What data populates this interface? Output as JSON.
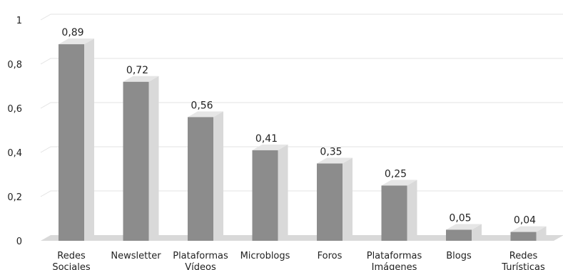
{
  "chart_data": {
    "type": "bar",
    "title": "",
    "xlabel": "",
    "ylabel": "",
    "ylim": [
      0,
      1
    ],
    "yticks": [
      {
        "value": 0,
        "label": "0"
      },
      {
        "value": 0.2,
        "label": "0,2"
      },
      {
        "value": 0.4,
        "label": "0,4"
      },
      {
        "value": 0.6,
        "label": "0,6"
      },
      {
        "value": 0.8,
        "label": "0,8"
      },
      {
        "value": 1,
        "label": "1"
      }
    ],
    "grid": true,
    "legend": "none",
    "style": "3d-column",
    "colors": {
      "bar_front": "#8c8c8c",
      "bar_side": "#d9d9d9",
      "bar_top": "#e6e6e6",
      "floor": "#d9d9d9",
      "gridline": "#e3e3e3",
      "text": "#222222"
    },
    "categories": [
      [
        "Redes",
        "Sociales"
      ],
      [
        "Newsletter"
      ],
      [
        "Plataformas",
        "Vídeos"
      ],
      [
        "Microblogs"
      ],
      [
        "Foros"
      ],
      [
        "Plataformas",
        "Imágenes"
      ],
      [
        "Blogs"
      ],
      [
        "Redes",
        "Turísticas"
      ]
    ],
    "values": [
      0.89,
      0.72,
      0.56,
      0.41,
      0.35,
      0.25,
      0.05,
      0.04
    ],
    "data_labels": [
      "0,89",
      "0,72",
      "0,56",
      "0,41",
      "0,35",
      "0,25",
      "0,05",
      "0,04"
    ]
  }
}
